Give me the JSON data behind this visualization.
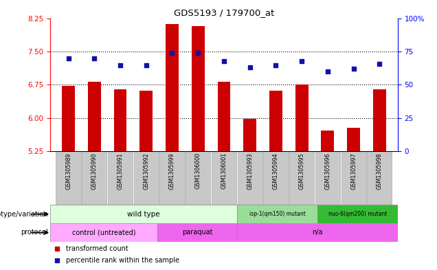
{
  "title": "GDS5193 / 179700_at",
  "samples": [
    "GSM1305989",
    "GSM1305990",
    "GSM1305991",
    "GSM1305992",
    "GSM1305999",
    "GSM1306000",
    "GSM1306001",
    "GSM1305993",
    "GSM1305994",
    "GSM1305995",
    "GSM1305996",
    "GSM1305997",
    "GSM1305998"
  ],
  "bar_values": [
    6.72,
    6.82,
    6.65,
    6.62,
    8.12,
    8.08,
    6.82,
    5.98,
    6.62,
    6.75,
    5.72,
    5.78,
    6.65
  ],
  "dot_values": [
    70,
    70,
    65,
    65,
    74,
    74,
    68,
    63,
    65,
    68,
    60,
    62,
    66
  ],
  "ylim_left": [
    5.25,
    8.25
  ],
  "ylim_right": [
    0,
    100
  ],
  "yticks_left": [
    5.25,
    6.0,
    6.75,
    7.5,
    8.25
  ],
  "yticks_right": [
    0,
    25,
    50,
    75,
    100
  ],
  "hlines": [
    6.0,
    6.75,
    7.5
  ],
  "bar_color": "#cc0000",
  "dot_color": "#1111aa",
  "background_color": "#ffffff",
  "genotype_groups": [
    {
      "text": "wild type",
      "start": 0,
      "end": 6,
      "color": "#ddffdd"
    },
    {
      "text": "isp-1(qm150) mutant",
      "start": 7,
      "end": 9,
      "color": "#99dd99"
    },
    {
      "text": "nuo-6(qm200) mutant",
      "start": 10,
      "end": 12,
      "color": "#33bb33"
    }
  ],
  "protocol_groups": [
    {
      "text": "control (untreated)",
      "start": 0,
      "end": 3,
      "color": "#ffaaff"
    },
    {
      "text": "paraquat",
      "start": 4,
      "end": 6,
      "color": "#ee66ee"
    },
    {
      "text": "n/a",
      "start": 7,
      "end": 12,
      "color": "#ee66ee"
    }
  ],
  "legend_bar_label": "transformed count",
  "legend_dot_label": "percentile rank within the sample",
  "genotype_label": "genotype/variation",
  "protocol_label": "protocol",
  "sample_box_color": "#c8c8c8",
  "sample_box_edge": "#ffffff"
}
